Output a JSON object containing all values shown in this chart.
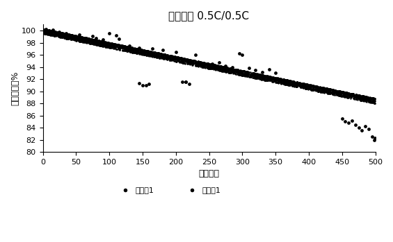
{
  "title": "常温循环 0.5C/0.5C",
  "xlabel": "循环周数",
  "ylabel": "容量保持率%",
  "xlim": [
    0,
    500
  ],
  "ylim": [
    80,
    101
  ],
  "xticks": [
    0,
    50,
    100,
    150,
    200,
    250,
    300,
    350,
    400,
    450,
    500
  ],
  "yticks": [
    80,
    82,
    84,
    86,
    88,
    90,
    92,
    94,
    96,
    98,
    100
  ],
  "series1_label": "对比例1",
  "series2_label": "实施例1",
  "dot_color": "#000000",
  "background_color": "#ffffff",
  "title_fontsize": 11,
  "axis_fontsize": 9,
  "tick_fontsize": 8,
  "legend_fontsize": 8,
  "seed": 42,
  "n_main": 5000,
  "trend_start": 100.0,
  "trend_end": 88.5,
  "band_tight": 0.35,
  "band_loose_low": 0.5,
  "band_loose_high": 0.3
}
